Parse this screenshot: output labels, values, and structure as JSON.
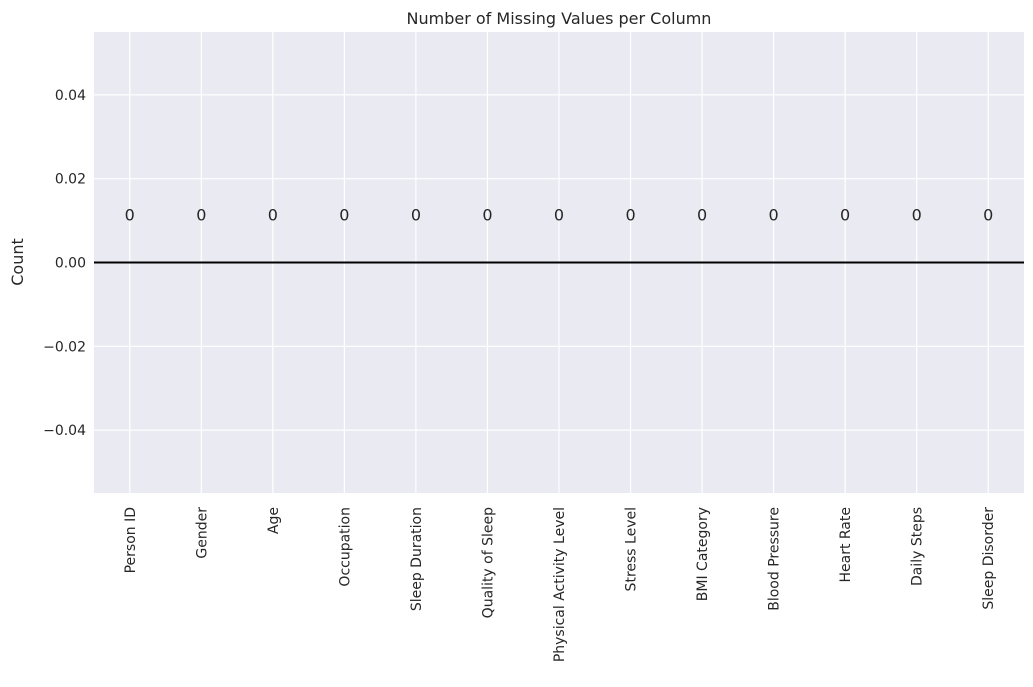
{
  "chart_data": {
    "type": "bar",
    "title": "Number of Missing Values per Column",
    "xlabel": "",
    "ylabel": "Count",
    "categories": [
      "Person ID",
      "Gender",
      "Age",
      "Occupation",
      "Sleep Duration",
      "Quality of Sleep",
      "Physical Activity Level",
      "Stress Level",
      "BMI Category",
      "Blood Pressure",
      "Heart Rate",
      "Daily Steps",
      "Sleep Disorder"
    ],
    "values": [
      0,
      0,
      0,
      0,
      0,
      0,
      0,
      0,
      0,
      0,
      0,
      0,
      0
    ],
    "data_labels": [
      "0",
      "0",
      "0",
      "0",
      "0",
      "0",
      "0",
      "0",
      "0",
      "0",
      "0",
      "0",
      "0"
    ],
    "ylim": [
      -0.055,
      0.055
    ],
    "yticks": [
      -0.04,
      -0.02,
      0.0,
      0.02,
      0.04
    ],
    "ytick_labels": [
      "−0.04",
      "−0.02",
      "0.00",
      "0.02",
      "0.04"
    ],
    "grid": true,
    "zero_line": true,
    "colors": {
      "background": "#eaeaf2",
      "grid": "#ffffff",
      "zero_line": "#000000",
      "text": "#262626"
    }
  }
}
